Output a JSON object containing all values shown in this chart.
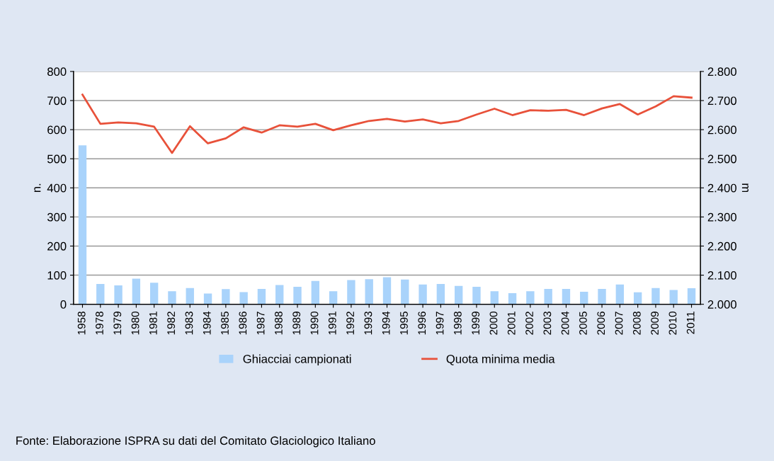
{
  "chart_data": {
    "type": "bar",
    "categories": [
      "1958",
      "1978",
      "1979",
      "1980",
      "1981",
      "1982",
      "1983",
      "1984",
      "1985",
      "1986",
      "1987",
      "1988",
      "1989",
      "1990",
      "1991",
      "1992",
      "1993",
      "1994",
      "1995",
      "1996",
      "1997",
      "1998",
      "1999",
      "2000",
      "2001",
      "2002",
      "2003",
      "2004",
      "2005",
      "2006",
      "2007",
      "2008",
      "2009",
      "2010",
      "2011"
    ],
    "series": [
      {
        "name": "Ghiacciai campionati",
        "color": "#a9d3fb",
        "values": [
          546,
          70,
          65,
          88,
          74,
          45,
          56,
          37,
          52,
          42,
          53,
          66,
          60,
          80,
          45,
          83,
          86,
          93,
          85,
          68,
          70,
          63,
          60,
          45,
          38,
          45,
          53,
          53,
          43,
          53,
          68,
          41,
          56,
          49,
          55
        ]
      },
      {
        "name": "Quota minima media",
        "type": "line",
        "axis": "y2",
        "color": "#e8513a",
        "values": [
          2720,
          2620,
          2625,
          2622,
          2610,
          2520,
          2612,
          2553,
          2570,
          2608,
          2590,
          2615,
          2610,
          2620,
          2598,
          2615,
          2630,
          2637,
          2628,
          2635,
          2622,
          2630,
          2652,
          2672,
          2650,
          2667,
          2665,
          2668,
          2650,
          2673,
          2688,
          2652,
          2680,
          2715,
          2710
        ]
      }
    ],
    "ylim": [
      0,
      800
    ],
    "yticks": [
      0,
      100,
      200,
      300,
      400,
      500,
      600,
      700,
      800
    ],
    "y2lim": [
      2000,
      2800
    ],
    "y2ticks": [
      {
        "value": 2000,
        "label": "2.000"
      },
      {
        "value": 2100,
        "label": "2.100"
      },
      {
        "value": 2200,
        "label": "2.200"
      },
      {
        "value": 2300,
        "label": "2.300"
      },
      {
        "value": 2400,
        "label": "2.400"
      },
      {
        "value": 2500,
        "label": "2.500"
      },
      {
        "value": 2600,
        "label": "2.600"
      },
      {
        "value": 2700,
        "label": "2.700"
      },
      {
        "value": 2800,
        "label": "2.800"
      }
    ],
    "ylabel": "n.",
    "y2label": "m",
    "grid": "y",
    "legend": "bottom",
    "annotations": [
      "Fonte: Elaborazione ISPRA su dati del Comitato Glaciologico Italiano"
    ]
  }
}
